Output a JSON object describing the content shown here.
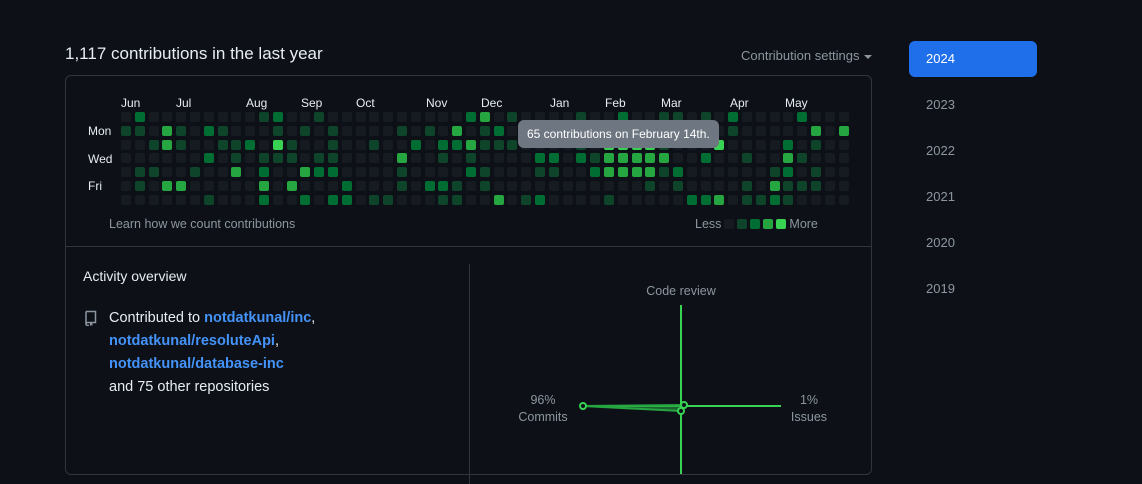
{
  "header": {
    "title": "1,117 contributions in the last year",
    "settings_label": "Contribution settings"
  },
  "graph": {
    "months": [
      "Jun",
      "Jul",
      "Aug",
      "Sep",
      "Oct",
      "Nov",
      "Dec",
      "Jan",
      "Feb",
      "Mar",
      "Apr",
      "May"
    ],
    "day_labels": [
      "Mon",
      "Wed",
      "Fri"
    ],
    "learn_link": "Learn how we count contributions",
    "legend_less": "Less",
    "legend_more": "More",
    "tooltip": "65 contributions on February 14th.",
    "colors": [
      "#161b22",
      "#0e4429",
      "#006d32",
      "#26a641",
      "#39d353"
    ]
  },
  "activity": {
    "title": "Activity overview",
    "contributed_to": "Contributed to",
    "repos": [
      "notdatkunal/inc",
      "notdatkunal/resoluteApi",
      "notdatkunal/database-inc"
    ],
    "other": "and 75 other repositories"
  },
  "radar": {
    "code_review_label": "Code review",
    "commits_pct": "96%",
    "commits_label": "Commits",
    "issues_pct": "1%",
    "issues_label": "Issues",
    "accent": "#39d353"
  },
  "years": [
    "2024",
    "2023",
    "2022",
    "2021",
    "2020",
    "2019"
  ],
  "selected_year": "2024"
}
